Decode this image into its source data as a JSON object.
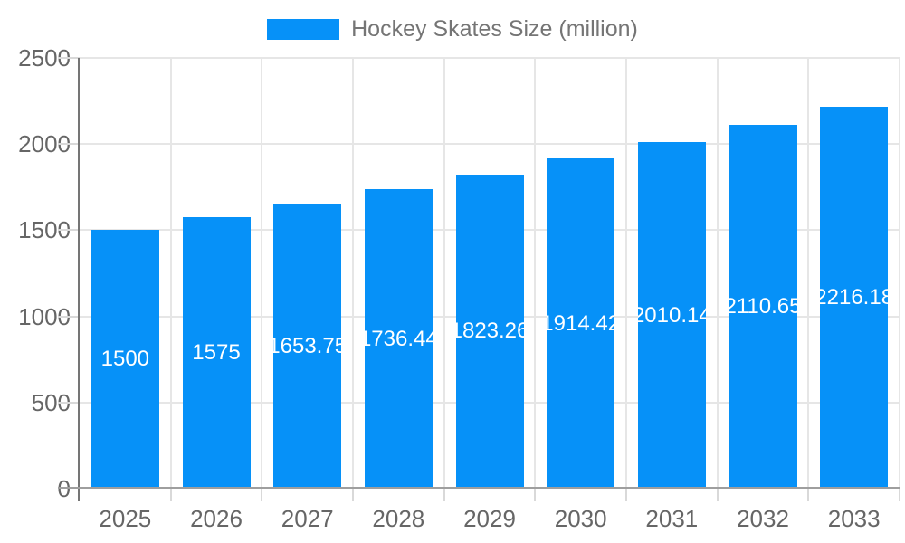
{
  "chart_data": {
    "type": "bar",
    "title": "",
    "legend": {
      "position": "top",
      "entries": [
        "Hockey Skates Size (million)"
      ]
    },
    "categories": [
      "2025",
      "2026",
      "2027",
      "2028",
      "2029",
      "2030",
      "2031",
      "2032",
      "2033"
    ],
    "series": [
      {
        "name": "Hockey Skates Size (million)",
        "values": [
          1500,
          1575,
          1653.75,
          1736.44,
          1823.26,
          1914.42,
          2010.14,
          2110.65,
          2216.18
        ],
        "data_labels": [
          "1500",
          "1575",
          "1653.75",
          "1736.44",
          "1823.26",
          "1914.42",
          "2010.14",
          "2110.65",
          "2216.18"
        ]
      }
    ],
    "xlabel": "",
    "ylabel": "",
    "ylim": [
      0,
      2500
    ],
    "yticks": [
      0,
      500,
      1000,
      1500,
      2000,
      2500
    ],
    "ytick_labels": [
      "0",
      "500",
      "1000",
      "1500",
      "2000",
      "2500"
    ],
    "grid": true,
    "colors": {
      "bar": "#0691f8",
      "bar_label": "#ffffff",
      "grid": "#e6e6e6",
      "tick": "#d9d9d9",
      "x_axis": "#9e9e9e",
      "y_axis": "#757575",
      "axis_label": "#666666",
      "legend_text": "#757575",
      "background": "#ffffff"
    }
  }
}
